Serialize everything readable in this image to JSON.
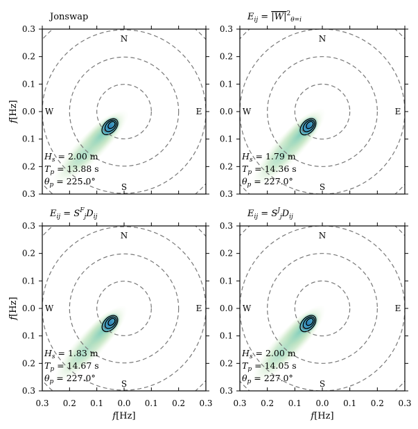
{
  "panels": [
    {
      "title": "Jonswap",
      "stats": [
        "H_s = 2.00 m",
        "T_p = 13.88 s",
        "θ_p = 225.0°"
      ],
      "show_ylabel": true,
      "show_xlabel": false
    },
    {
      "title": "E_ij = |W|²_θ=i",
      "stats": [
        "H_s = 1.79 m",
        "T_p = 14.36 s",
        "θ_p = 227.0°"
      ],
      "show_ylabel": false,
      "show_xlabel": false
    },
    {
      "title": "E_ij = S^F_j D_ij",
      "stats": [
        "H_s = 1.83 m",
        "T_p = 14.67 s",
        "θ_p = 227.0°"
      ],
      "show_ylabel": true,
      "show_xlabel": true
    },
    {
      "title": "E_ij = S^J_j D_ij",
      "stats": [
        "H_s = 2.00 m",
        "T_p = 14.05 s",
        "θ_p = 227.0°"
      ],
      "show_ylabel": false,
      "show_xlabel": true
    }
  ],
  "compass": {
    "north": "N",
    "south": "S",
    "west": "W",
    "east": "E"
  },
  "colors": {
    "ring": "#777777",
    "spread_light": "#c8e6c0",
    "spread_mid": "#7fcdbb",
    "spread_core": "#3a92c0",
    "contour": "#000000"
  },
  "chart_data": {
    "type": "polar-spectrum",
    "xlabel": "f[Hz]",
    "ylabel": "f[Hz]",
    "xlim": [
      -0.3,
      0.3
    ],
    "ylim": [
      -0.3,
      0.3
    ],
    "x_ticks": [
      "0.3",
      "0.2",
      "0.1",
      "0.0",
      "0.1",
      "0.2",
      "0.3"
    ],
    "y_ticks": [
      "0.3",
      "0.2",
      "0.1",
      "0.0",
      "0.1",
      "0.2",
      "0.3"
    ],
    "rings_hz": [
      0.1,
      0.2,
      0.3
    ],
    "panels": [
      {
        "name": "Jonswap",
        "Hs_m": 2.0,
        "Tp_s": 13.88,
        "theta_p_deg": 225.0,
        "peak_f_hz": 0.072
      },
      {
        "name": "E_ij = |W|²",
        "Hs_m": 1.79,
        "Tp_s": 14.36,
        "theta_p_deg": 227.0,
        "peak_f_hz": 0.07
      },
      {
        "name": "E_ij = S^F_j D_ij",
        "Hs_m": 1.83,
        "Tp_s": 14.67,
        "theta_p_deg": 227.0,
        "peak_f_hz": 0.068
      },
      {
        "name": "E_ij = S^J_j D_ij",
        "Hs_m": 2.0,
        "Tp_s": 14.05,
        "theta_p_deg": 227.0,
        "peak_f_hz": 0.071
      }
    ]
  }
}
